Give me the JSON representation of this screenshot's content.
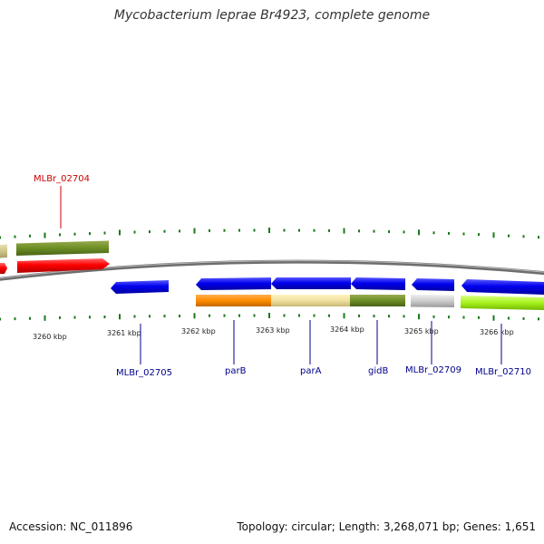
{
  "title": "Mycobacterium leprae Br4923, complete genome",
  "footer": {
    "accession": "Accession: NC_011896",
    "summary": "Topology: circular; Length: 3,268,071 bp; Genes: 1,651"
  },
  "ruler": {
    "labels": [
      "3260 kbp",
      "3261 kbp",
      "3262 kbp",
      "3263 kbp",
      "3264 kbp",
      "3265 kbp",
      "3266 kbp"
    ]
  },
  "genes": [
    {
      "id": "MLBr_02704",
      "label": "MLBr_02704",
      "color": "#cc0000"
    },
    {
      "id": "MLBr_02705",
      "label": "MLBr_02705",
      "color": "#00008b"
    },
    {
      "id": "parB",
      "label": "parB",
      "color": "#00008b"
    },
    {
      "id": "parA",
      "label": "parA",
      "color": "#00008b"
    },
    {
      "id": "gidB",
      "label": "gidB",
      "color": "#00008b"
    },
    {
      "id": "MLBr_02709",
      "label": "MLBr_02709",
      "color": "#00008b"
    },
    {
      "id": "MLBr_02710",
      "label": "MLBr_02710",
      "color": "#00008b"
    }
  ],
  "colors": {
    "forward_cds": "#ff0000",
    "reverse_cds": "#0000ee",
    "tick": "#1a7a1a",
    "backbone": "#808080"
  }
}
